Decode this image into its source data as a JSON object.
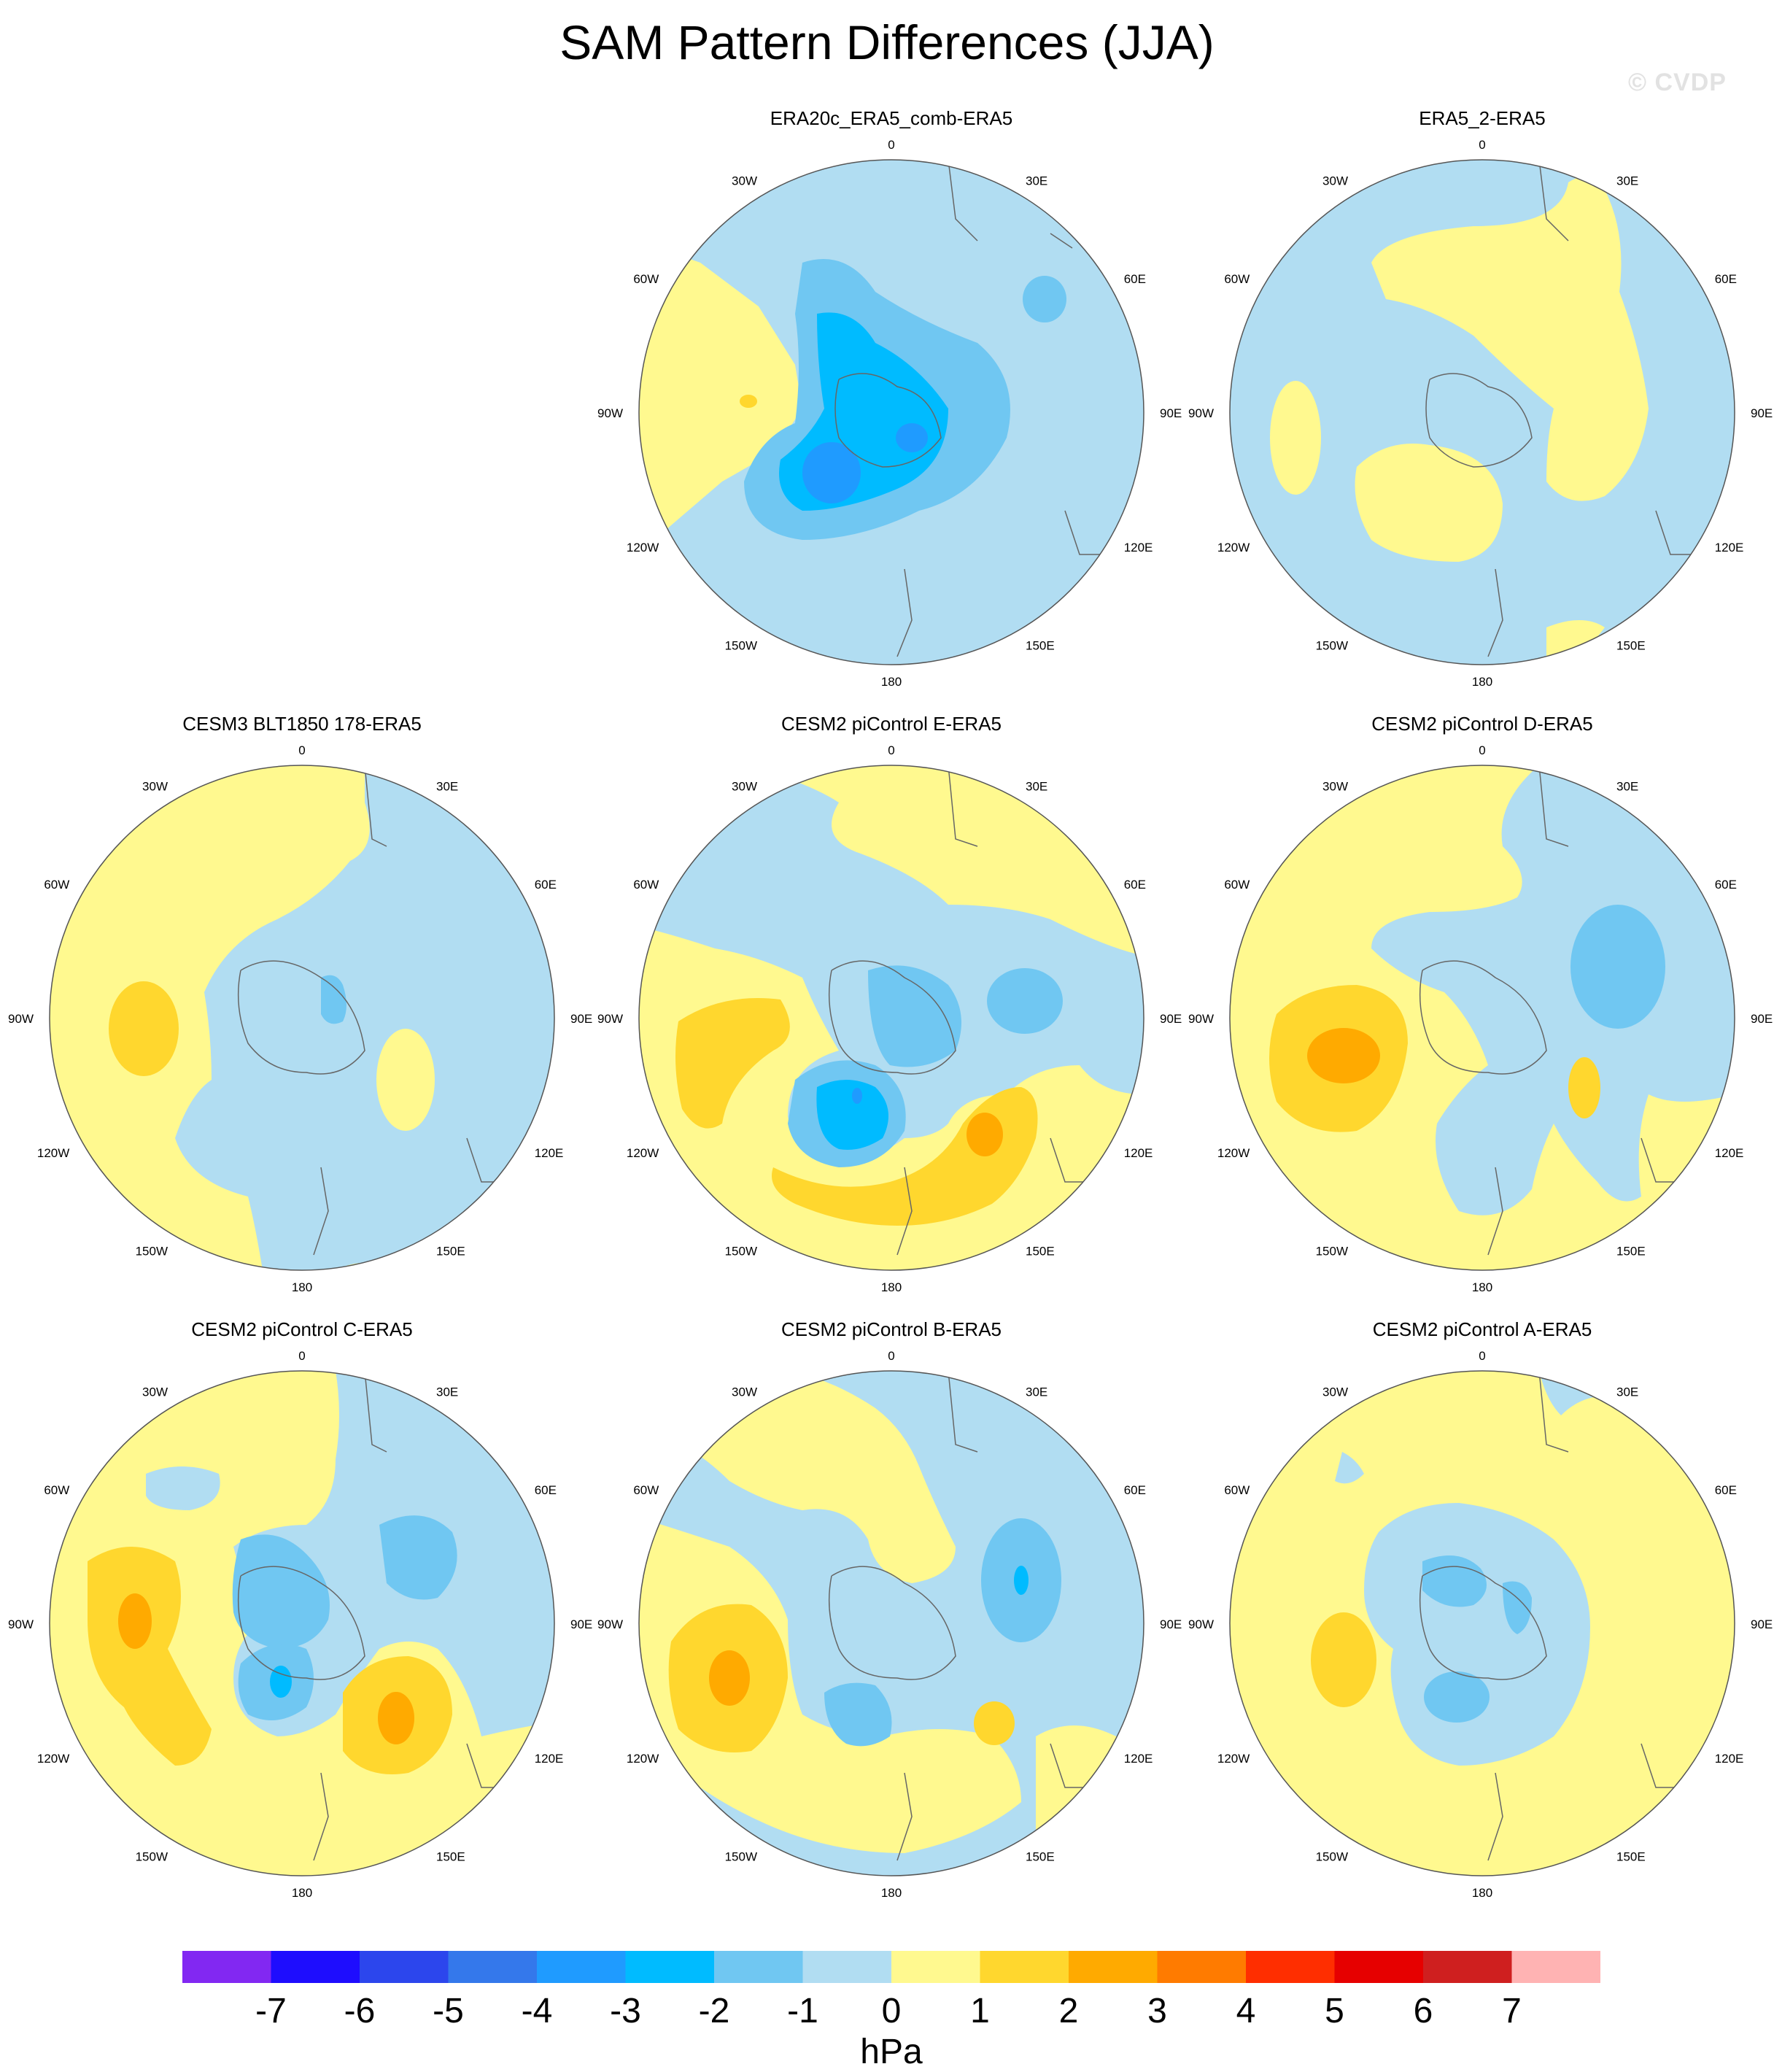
{
  "title": "SAM Pattern Differences (JJA)",
  "watermark": "© CVDP",
  "colorbar": {
    "unit": "hPa",
    "tick_labels": [
      "-7",
      "-6",
      "-5",
      "-4",
      "-3",
      "-2",
      "-1",
      "0",
      "1",
      "2",
      "3",
      "4",
      "5",
      "6",
      "7"
    ],
    "colors": [
      "#8228F2",
      "#1E0DFE",
      "#2C46ED",
      "#3478EB",
      "#1F9BFF",
      "#00BBFF",
      "#70C7F2",
      "#B1DDF2",
      "#FFF98F",
      "#FFD72E",
      "#FFAA00",
      "#FF7B00",
      "#FF2E00",
      "#E60000",
      "#CF1F1F",
      "#FFB3B3"
    ]
  },
  "longitude_labels": [
    "0",
    "30E",
    "60E",
    "90E",
    "120E",
    "150E",
    "180",
    "150W",
    "120W",
    "90W",
    "60W",
    "30W"
  ],
  "panels": [
    {
      "title": "ERA20c_ERA5_comb-ERA5"
    },
    {
      "title": "ERA5_2-ERA5"
    },
    {
      "title": "CESM3 BLT1850 178-ERA5"
    },
    {
      "title": "CESM2 piControl E-ERA5"
    },
    {
      "title": "CESM2 piControl D-ERA5"
    },
    {
      "title": "CESM2 piControl C-ERA5"
    },
    {
      "title": "CESM2 piControl B-ERA5"
    },
    {
      "title": "CESM2 piControl A-ERA5"
    }
  ]
}
